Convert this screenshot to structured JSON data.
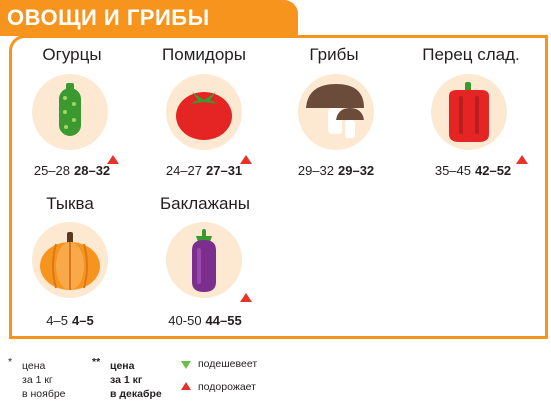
{
  "title": "ОВОЩИ И ГРИБЫ",
  "items": [
    {
      "name": "Огурцы",
      "icon": "cucumber-icon",
      "old_price": "25–28",
      "new_price": "28–32",
      "trend": "up"
    },
    {
      "name": "Помидоры",
      "icon": "tomato-icon",
      "old_price": "24–27",
      "new_price": "27–31",
      "trend": "up"
    },
    {
      "name": "Грибы",
      "icon": "mushroom-icon",
      "old_price": "29–32",
      "new_price": "29–32",
      "trend": "none"
    },
    {
      "name": "Перец слад.",
      "icon": "pepper-icon",
      "old_price": "35–45",
      "new_price": "42–52",
      "trend": "up"
    },
    {
      "name": "Тыква",
      "icon": "pumpkin-icon",
      "old_price": "4–5",
      "new_price": "4–5",
      "trend": "none"
    },
    {
      "name": "Баклажаны",
      "icon": "eggplant-icon",
      "old_price": "40-50",
      "new_price": "44–55",
      "trend": "up"
    }
  ],
  "legend": {
    "star1": "*",
    "nov_l1": "цена",
    "nov_l2": "за 1 кг",
    "nov_l3": "в ноябре",
    "star2": "**",
    "dec_l1": "цена",
    "dec_l2": "за 1 кг",
    "dec_l3": "в декабре",
    "cheaper": "подешевеет",
    "pricier": "подорожает"
  },
  "colors": {
    "accent": "#f7941d",
    "up": "#e63329",
    "down": "#6abf4b",
    "circle": "#fde9d1"
  }
}
